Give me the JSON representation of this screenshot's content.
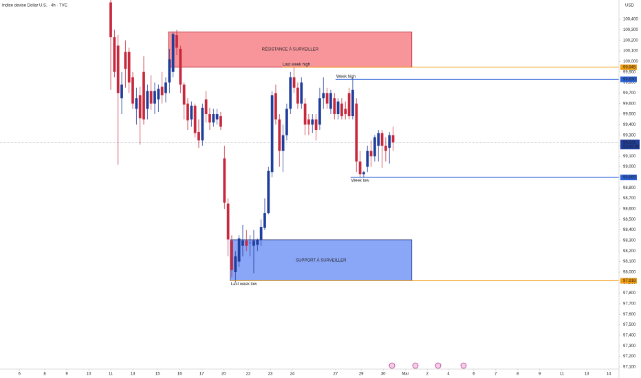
{
  "chart_data": {
    "type": "candlestick",
    "title": "Indice devise Dollar U.S. · 4h · TVC",
    "currency": "USD",
    "up_color": "#1f3d9b",
    "down_color": "#c8283c",
    "x": [
      0,
      1,
      2,
      3,
      4,
      5,
      6,
      7,
      8,
      9,
      10,
      11,
      12,
      13,
      14,
      15,
      16,
      17,
      18,
      19,
      20,
      21,
      22,
      23,
      24,
      25,
      26,
      27,
      28,
      29,
      30,
      31,
      32,
      33,
      34,
      35,
      36,
      37,
      38,
      39,
      40,
      41,
      42,
      43,
      44,
      45,
      46,
      47,
      48,
      49,
      50,
      51,
      52,
      53,
      54,
      55,
      56,
      57,
      58,
      59,
      60,
      61,
      62,
      63,
      64,
      65,
      66,
      67,
      68,
      69,
      70,
      71,
      72,
      73,
      74,
      75,
      76,
      77
    ],
    "ohlc": [
      [
        100560,
        100600,
        99730,
        100230
      ],
      [
        100230,
        100300,
        99850,
        99900
      ],
      [
        100150,
        100250,
        99020,
        99700
      ],
      [
        99650,
        99900,
        99500,
        99780
      ],
      [
        100090,
        100200,
        99750,
        99930
      ],
      [
        100090,
        100130,
        99700,
        99800
      ],
      [
        99850,
        99900,
        99550,
        99600
      ],
      [
        99550,
        99750,
        99400,
        99650
      ],
      [
        99680,
        99760,
        99210,
        99460
      ],
      [
        99900,
        100050,
        99400,
        99450
      ],
      [
        99550,
        99780,
        99450,
        99720
      ],
      [
        99720,
        99870,
        99540,
        99600
      ],
      [
        99600,
        99800,
        99500,
        99720
      ],
      [
        99640,
        99780,
        99520,
        99740
      ],
      [
        99760,
        99900,
        99600,
        99680
      ],
      [
        99700,
        99850,
        99610,
        99800
      ],
      [
        99800,
        100120,
        99700,
        100020
      ],
      [
        99900,
        100280,
        99850,
        100260
      ],
      [
        100250,
        100300,
        100060,
        100130
      ],
      [
        100120,
        100150,
        99700,
        99780
      ],
      [
        99780,
        99800,
        99450,
        99590
      ],
      [
        99600,
        99650,
        99350,
        99440
      ],
      [
        99450,
        99620,
        99380,
        99580
      ],
      [
        99580,
        99600,
        99280,
        99320
      ],
      [
        99330,
        99450,
        99180,
        99250
      ],
      [
        99250,
        99600,
        99200,
        99560
      ],
      [
        99640,
        99720,
        99420,
        99500
      ],
      [
        99500,
        99560,
        99350,
        99420
      ],
      [
        99420,
        99550,
        99380,
        99500
      ],
      [
        99450,
        99550,
        99400,
        99500
      ],
      [
        99480,
        99520,
        99350,
        99380
      ],
      [
        99080,
        99200,
        98600,
        98660
      ],
      [
        98650,
        98700,
        98150,
        98310
      ],
      [
        98300,
        98350,
        97950,
        98020
      ],
      [
        98000,
        98200,
        97900,
        98150
      ],
      [
        98100,
        98350,
        98050,
        98320
      ],
      [
        98250,
        98450,
        98150,
        98300
      ],
      [
        98300,
        98400,
        98200,
        98250
      ],
      [
        98280,
        98350,
        98150,
        98280
      ],
      [
        98250,
        98400,
        97990,
        98300
      ],
      [
        98260,
        98320,
        98200,
        98310
      ],
      [
        98310,
        98500,
        98250,
        98430
      ],
      [
        98420,
        98700,
        98400,
        98560
      ],
      [
        98560,
        99000,
        98550,
        98960
      ],
      [
        98950,
        99720,
        98900,
        99680
      ],
      [
        99700,
        99780,
        99400,
        99450
      ],
      [
        99450,
        99500,
        99000,
        99150
      ],
      [
        99150,
        99400,
        98950,
        99300
      ],
      [
        99300,
        99600,
        99250,
        99550
      ],
      [
        99550,
        99900,
        99500,
        99850
      ],
      [
        99850,
        99950,
        99700,
        99750
      ],
      [
        99750,
        99800,
        99550,
        99600
      ],
      [
        99600,
        99850,
        99550,
        99800
      ],
      [
        99600,
        99650,
        99300,
        99400
      ],
      [
        99450,
        99500,
        99300,
        99400
      ],
      [
        99400,
        99500,
        99320,
        99450
      ],
      [
        99450,
        99500,
        99250,
        99350
      ],
      [
        99400,
        99750,
        99350,
        99650
      ],
      [
        99650,
        99850,
        99550,
        99700
      ],
      [
        99700,
        99750,
        99550,
        99600
      ],
      [
        99550,
        99730,
        99500,
        99700
      ],
      [
        99650,
        99700,
        99450,
        99500
      ],
      [
        99500,
        99650,
        99450,
        99620
      ],
      [
        99600,
        99650,
        99450,
        99480
      ],
      [
        99550,
        99620,
        99450,
        99500
      ],
      [
        99700,
        99750,
        99450,
        99480
      ],
      [
        99480,
        99850,
        99450,
        99730
      ],
      [
        99600,
        99650,
        98950,
        99050
      ],
      [
        99050,
        99150,
        98900,
        98930
      ],
      [
        98930,
        98960,
        98900,
        98950
      ],
      [
        99000,
        99200,
        98950,
        99150
      ],
      [
        99150,
        99250,
        99000,
        99100
      ],
      [
        99100,
        99300,
        99050,
        99280
      ],
      [
        99200,
        99350,
        99050,
        99320
      ],
      [
        99320,
        99350,
        98990,
        99200
      ],
      [
        99200,
        99280,
        99050,
        99150
      ],
      [
        99180,
        99330,
        99030,
        99300
      ],
      [
        99300,
        99380,
        99150,
        99231
      ]
    ],
    "xlim": [
      -30.2,
      138.6
    ],
    "ylim": [
      97080,
      100583
    ],
    "xticks": [
      {
        "value": -24.9,
        "label": "6"
      },
      {
        "value": -18,
        "label": "8"
      },
      {
        "value": -12,
        "label": "9"
      },
      {
        "value": -6,
        "label": "10"
      },
      {
        "value": 0,
        "label": "11"
      },
      {
        "value": 6,
        "label": "13"
      },
      {
        "value": 12.8,
        "label": "15"
      },
      {
        "value": 18.8,
        "label": "16"
      },
      {
        "value": 24.8,
        "label": "17"
      },
      {
        "value": 30.8,
        "label": "20"
      },
      {
        "value": 37.5,
        "label": "22"
      },
      {
        "value": 43.5,
        "label": "23"
      },
      {
        "value": 49.5,
        "label": "24"
      },
      {
        "value": 61.3,
        "label": "27"
      },
      {
        "value": 68.3,
        "label": "29"
      },
      {
        "value": 74.3,
        "label": "30"
      },
      {
        "value": 80.3,
        "label": "Mai"
      },
      {
        "value": 86.3,
        "label": "2"
      },
      {
        "value": 92.1,
        "label": "4"
      },
      {
        "value": 99,
        "label": "6"
      },
      {
        "value": 105,
        "label": "7"
      },
      {
        "value": 111,
        "label": "8"
      },
      {
        "value": 117,
        "label": "9"
      },
      {
        "value": 123,
        "label": "11"
      },
      {
        "value": 129.8,
        "label": "13"
      },
      {
        "value": 135.8,
        "label": "14"
      }
    ],
    "yticks": [
      {
        "value": 97100,
        "label": "97,100"
      },
      {
        "value": 97200,
        "label": "97,200"
      },
      {
        "value": 97300,
        "label": "97,300"
      },
      {
        "value": 97400,
        "label": "97,400"
      },
      {
        "value": 97500,
        "label": "97,500"
      },
      {
        "value": 97600,
        "label": "97,600"
      },
      {
        "value": 97700,
        "label": "97,700"
      },
      {
        "value": 97800,
        "label": "97,800"
      },
      {
        "value": 97900,
        "label": "97,900"
      },
      {
        "value": 98000,
        "label": "98,000"
      },
      {
        "value": 98100,
        "label": "98,100"
      },
      {
        "value": 98200,
        "label": "98,200"
      },
      {
        "value": 98300,
        "label": "98,300"
      },
      {
        "value": 98400,
        "label": "98,400"
      },
      {
        "value": 98500,
        "label": "98,500"
      },
      {
        "value": 98600,
        "label": "98,600"
      },
      {
        "value": 98700,
        "label": "98,700"
      },
      {
        "value": 98800,
        "label": "98,800"
      },
      {
        "value": 98900,
        "label": "98,900"
      },
      {
        "value": 99000,
        "label": "99,000"
      },
      {
        "value": 99100,
        "label": "99,100"
      },
      {
        "value": 99200,
        "label": "99,200"
      },
      {
        "value": 99300,
        "label": "99,300"
      },
      {
        "value": 99400,
        "label": "99,400"
      },
      {
        "value": 99500,
        "label": "99,500"
      },
      {
        "value": 99600,
        "label": "99,600"
      },
      {
        "value": 99700,
        "label": "99,700"
      },
      {
        "value": 99800,
        "label": "99,800"
      },
      {
        "value": 99900,
        "label": "99,900"
      },
      {
        "value": 100000,
        "label": "100,000"
      },
      {
        "value": 100100,
        "label": "100,100"
      },
      {
        "value": 100200,
        "label": "100,200"
      },
      {
        "value": 100300,
        "label": "100,300"
      },
      {
        "value": 100400,
        "label": "100,400"
      }
    ],
    "zones": [
      {
        "label": "RÉSISTANCE À SURVEILLER",
        "low": 99945,
        "high": 100280,
        "x_start": 15.75,
        "x_end": 82.1,
        "color": "#f7959b",
        "border": "#b0202c"
      },
      {
        "label": "SUPPORT À SURVEILLER",
        "low": 97918,
        "high": 98307,
        "x_start": 32.6,
        "x_end": 82.1,
        "color": "#8aa6f7",
        "border": "#27337a"
      }
    ],
    "levels": [
      {
        "name": "Last week high",
        "value": 99945,
        "value_label": "99,945",
        "x_start": 46.7,
        "color": "#f29b0c",
        "label_side": "above"
      },
      {
        "name": "Week high",
        "value": 99830,
        "value_label": "99,830",
        "x_start": 61.3,
        "color": "#2a5fd6",
        "label_side": "above"
      },
      {
        "name": "Week low",
        "value": 98899,
        "value_label": "98,899",
        "x_start": 65.4,
        "color": "#2a5fd6",
        "label_side": "below"
      },
      {
        "name": "Last week low",
        "value": 97918,
        "value_label": "97,918",
        "x_start": 32.6,
        "color": "#f29b0c",
        "label_side": "below"
      }
    ],
    "last_price": {
      "value": 99231,
      "value_label": "99,231",
      "countdown": "03:43:06",
      "color": "#1f3d9b"
    }
  }
}
